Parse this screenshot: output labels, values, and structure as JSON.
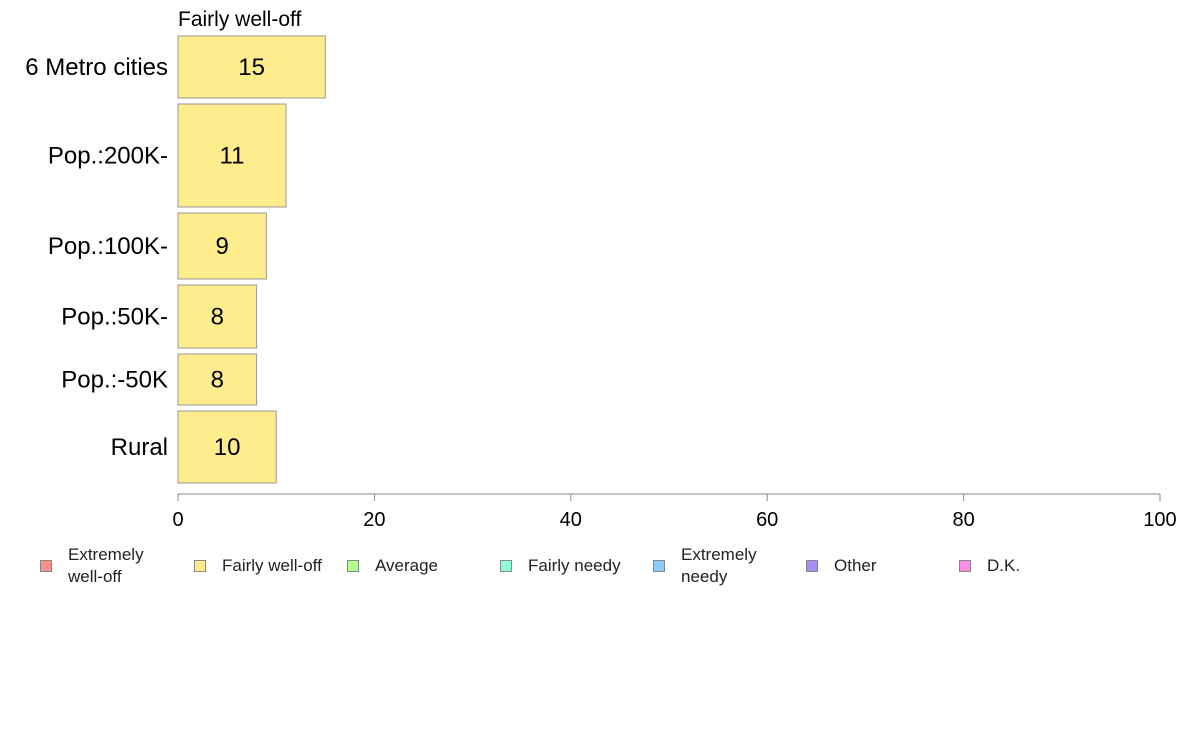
{
  "chart_data": {
    "type": "bar",
    "orientation": "horizontal",
    "title": "Fairly well-off",
    "categories": [
      "6 Metro cities",
      "Pop.:200K-",
      "Pop.:100K-",
      "Pop.:50K-",
      "Pop.:-50K",
      "Rural"
    ],
    "series": [
      {
        "name": "Fairly well-off",
        "values": [
          15,
          11,
          9,
          8,
          8,
          10
        ]
      }
    ],
    "xlim": [
      0,
      100
    ],
    "xticks": [
      0,
      20,
      40,
      60,
      80,
      100
    ],
    "grid": false,
    "legend": {
      "position": "bottom",
      "items": [
        {
          "label": "Extremely well-off",
          "color": "#ff8f8a"
        },
        {
          "label": "Fairly well-off",
          "color": "#ffec8c"
        },
        {
          "label": "Average",
          "color": "#b2ff8c"
        },
        {
          "label": "Fairly needy",
          "color": "#8cffd6"
        },
        {
          "label": "Extremely needy",
          "color": "#8cccff"
        },
        {
          "label": "Other",
          "color": "#a88cf5"
        },
        {
          "label": "D.K.",
          "color": "#ff8ce9"
        }
      ]
    },
    "bar_color": "#ffec8c"
  }
}
